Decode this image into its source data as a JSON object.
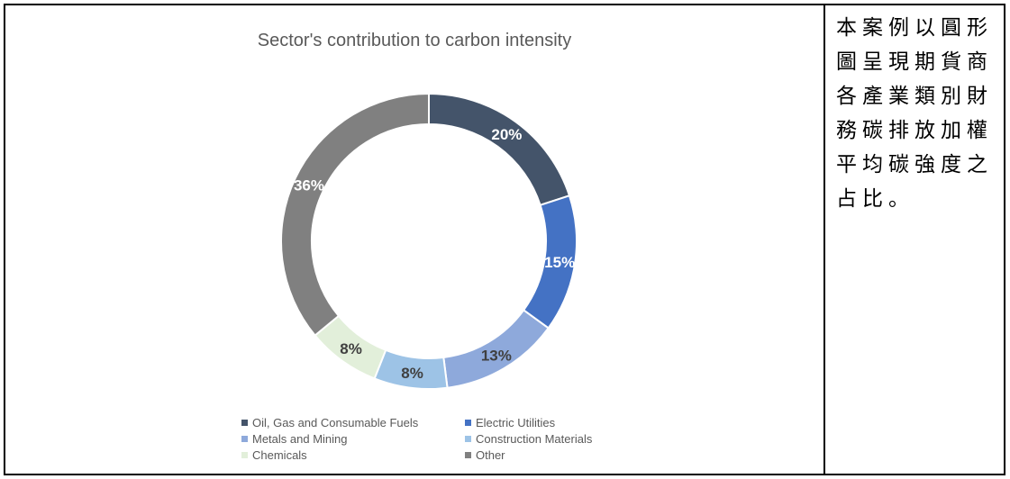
{
  "chart_data": {
    "type": "donut",
    "title": "Sector's contribution to carbon intensity",
    "categories": [
      "Oil, Gas and Consumable Fuels",
      "Electric Utilities",
      "Metals and Mining",
      "Construction Materials",
      "Chemicals",
      "Other"
    ],
    "values": [
      20,
      15,
      13,
      8,
      8,
      36
    ],
    "value_labels": [
      "20%",
      "15%",
      "13%",
      "8%",
      "8%",
      "36%"
    ],
    "colors": [
      "#44546A",
      "#4472C4",
      "#8EA9DB",
      "#9DC3E6",
      "#E2EFDA",
      "#808080"
    ],
    "label_colors": [
      "#ffffff",
      "#ffffff",
      "#404040",
      "#404040",
      "#404040",
      "#ffffff"
    ],
    "legend_position": "bottom"
  },
  "description": "本案例以圓形圖呈現期貨商各產業類別財務碳排放加權平均碳強度之占比。"
}
